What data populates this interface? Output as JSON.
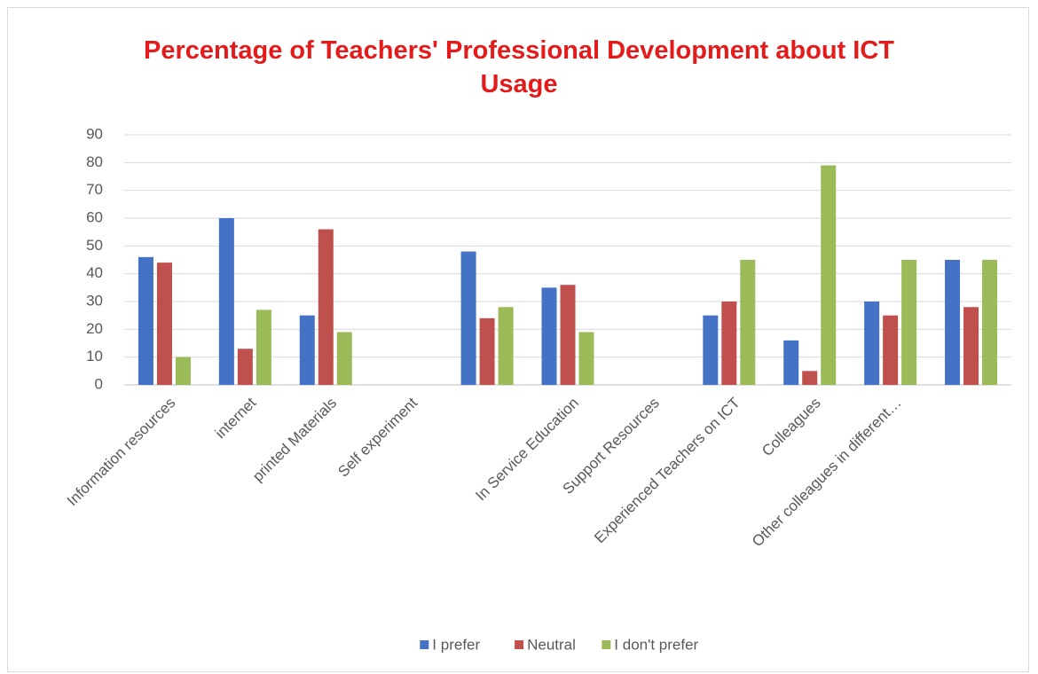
{
  "chart_data": {
    "type": "bar",
    "title": "Percentage of Teachers' Professional Development about ICT Usage",
    "categories": [
      "Information resources",
      "internet",
      "printed Materials",
      "Self experiment",
      null,
      "In Service Education",
      "Support Resources",
      "Experienced Teachers on ICT",
      "Colleagues",
      "Other colleagues in different…",
      null
    ],
    "series": [
      {
        "name": "I prefer",
        "color": "#4472c4",
        "values": [
          46,
          60,
          25,
          null,
          48,
          35,
          null,
          25,
          16,
          30,
          45
        ]
      },
      {
        "name": "Neutral",
        "color": "#c0504d",
        "values": [
          44,
          13,
          56,
          null,
          24,
          36,
          null,
          30,
          5,
          25,
          28
        ]
      },
      {
        "name": "I don't prefer",
        "color": "#9bbb59",
        "values": [
          10,
          27,
          19,
          null,
          28,
          19,
          null,
          45,
          79,
          45,
          45
        ]
      }
    ],
    "ylim": [
      0,
      90
    ],
    "yticks": [
      0,
      10,
      20,
      30,
      40,
      50,
      60,
      70,
      80,
      90
    ],
    "grid": true,
    "legend": "bottom"
  }
}
